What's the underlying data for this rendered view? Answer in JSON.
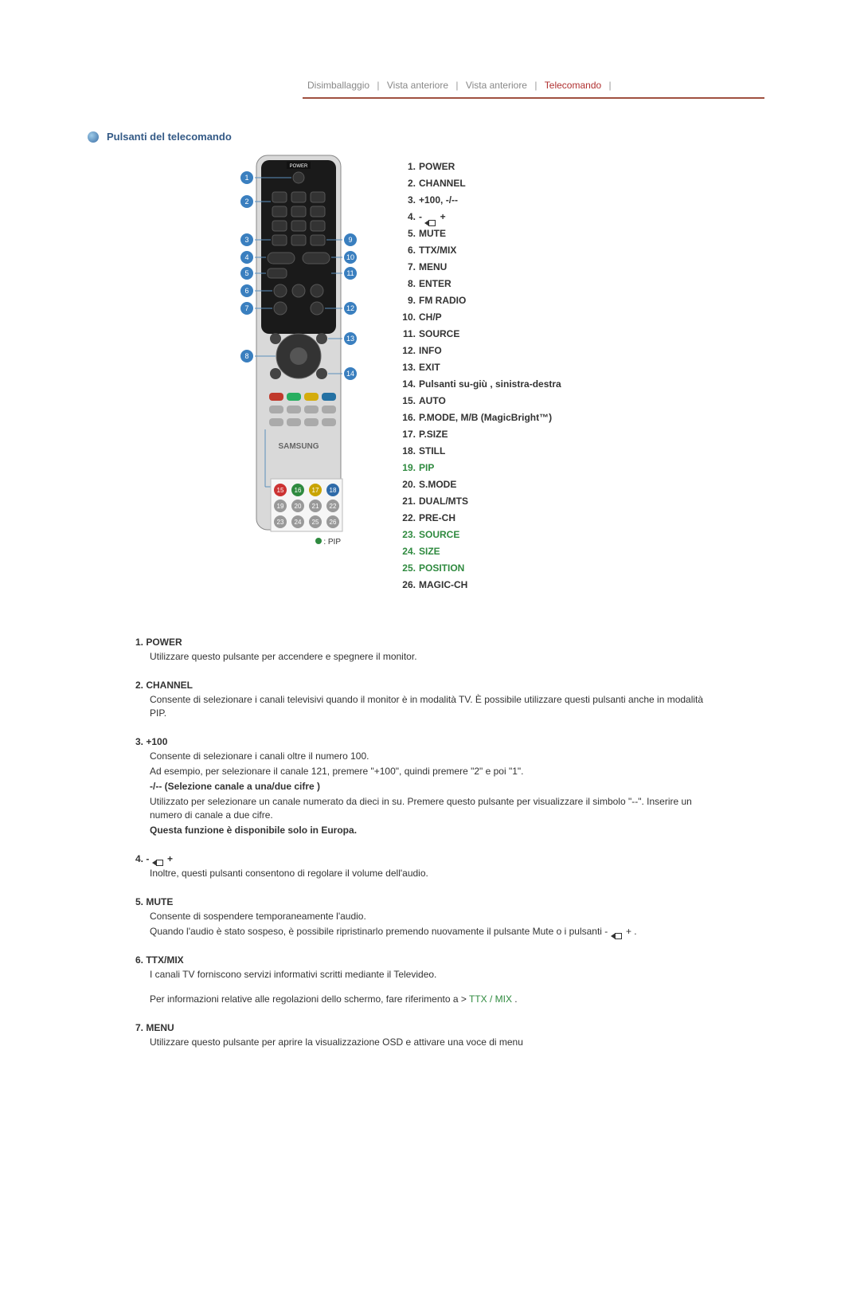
{
  "tabs": {
    "t1": "Disimballaggio",
    "t2": "Vista anteriore",
    "t3": "Vista anteriore",
    "t4": "Telecomando",
    "active_color": "#b03030",
    "inactive_color": "#888888",
    "rule_color": "#a05040"
  },
  "section_title": "Pulsanti del telecomando",
  "remote_numbers": {
    "left": [
      "1",
      "2",
      "3",
      "4",
      "5",
      "6",
      "7",
      "8"
    ],
    "right": [
      "9",
      "10",
      "11",
      "12",
      "13",
      "14"
    ],
    "bottom": [
      "15",
      "16",
      "17",
      "18",
      "19",
      "20",
      "21",
      "22",
      "23",
      "24",
      "25",
      "26"
    ],
    "brand": "SAMSUNG",
    "pip_caption": ": PIP",
    "pip_dot_color": "#2f8a3f"
  },
  "buttons": [
    {
      "label": "POWER"
    },
    {
      "label": "CHANNEL"
    },
    {
      "label": "+100, -/--"
    },
    {
      "label": "-  [vol] +",
      "has_vol_icon": true
    },
    {
      "label": "MUTE"
    },
    {
      "label": "TTX/MIX"
    },
    {
      "label": "MENU"
    },
    {
      "label": "ENTER"
    },
    {
      "label": "FM RADIO"
    },
    {
      "label": "CH/P"
    },
    {
      "label": "SOURCE"
    },
    {
      "label": "INFO"
    },
    {
      "label": "EXIT"
    },
    {
      "label": "Pulsanti su-giù , sinistra-destra"
    },
    {
      "label": "AUTO"
    },
    {
      "label": "P.MODE, M/B (MagicBright™)"
    },
    {
      "label": "P.SIZE"
    },
    {
      "label": "STILL"
    },
    {
      "label": "PIP",
      "green": true
    },
    {
      "label": "S.MODE"
    },
    {
      "label": "DUAL/MTS"
    },
    {
      "label": "PRE-CH"
    },
    {
      "label": "SOURCE",
      "green": true
    },
    {
      "label": "SIZE",
      "green": true
    },
    {
      "label": "POSITION",
      "green": true
    },
    {
      "label": "MAGIC-CH"
    }
  ],
  "descs": {
    "d1": {
      "head": "1. POWER",
      "lines": [
        "Utilizzare questo pulsante per accendere e spegnere il monitor."
      ]
    },
    "d2": {
      "head": "2. CHANNEL",
      "lines": [
        "Consente di selezionare i canali televisivi quando il monitor è in modalità TV. È possibile utilizzare questi pulsanti anche in modalità PIP."
      ]
    },
    "d3": {
      "head": "3. +100",
      "lines": [
        "Consente di selezionare i canali oltre il numero 100.",
        "Ad esempio, per selezionare il canale 121, premere \"+100\", quindi premere \"2\" e poi \"1\"."
      ],
      "bold1": "-/-- (Selezione canale a una/due cifre )",
      "lines2": [
        "Utilizzato per selezionare un canale numerato da dieci in su. Premere questo pulsante per visualizzare il simbolo \"--\". Inserire un numero di canale a due cifre."
      ],
      "bold2": "Questa funzione è disponibile solo in Europa."
    },
    "d4": {
      "head": "4. -  [vol] +",
      "lines": [
        "Inoltre, questi pulsanti consentono di regolare il volume dell'audio."
      ]
    },
    "d5": {
      "head": "5. MUTE",
      "lines": [
        "Consente di sospendere temporaneamente l'audio.",
        "Quando l'audio è stato sospeso, è possibile ripristinarlo premendo nuovamente il pulsante Mute o i pulsanti -  [vol] + ."
      ]
    },
    "d6": {
      "head": "6. TTX/MIX",
      "lines": [
        "I canali TV forniscono servizi informativi scritti mediante il Televideo."
      ],
      "lines2": [
        "Per informazioni relative alle regolazioni dello schermo, fare riferimento a > "
      ],
      "link": "TTX / MIX",
      "tail": " ."
    },
    "d7": {
      "head": "7. MENU",
      "lines": [
        "Utilizzare questo pulsante per aprire la visualizzazione OSD e attivare una voce di menu"
      ]
    }
  },
  "colors": {
    "heading": "#345a86",
    "green": "#2f8a3f",
    "text": "#333333",
    "bg": "#ffffff"
  }
}
